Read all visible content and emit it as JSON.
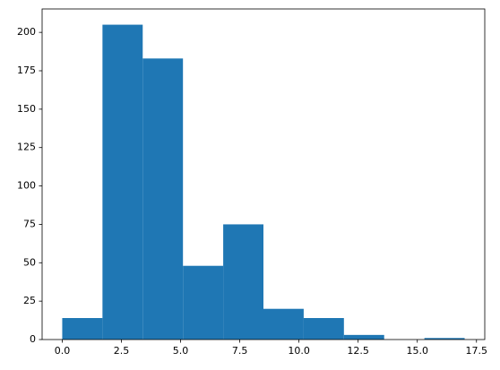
{
  "chart_data": {
    "type": "histogram",
    "color": "#1f77b4",
    "bins": [
      0,
      1.7,
      3.4,
      5.1,
      6.8,
      8.5,
      10.2,
      11.9,
      13.6,
      15.3,
      17
    ],
    "values": [
      14,
      205,
      183,
      48,
      75,
      20,
      14,
      3,
      0,
      1
    ],
    "xlim": [
      -0.85,
      17.85
    ],
    "xticks": [
      {
        "value": 0,
        "label": "0.0"
      },
      {
        "value": 2.5,
        "label": "2.5"
      },
      {
        "value": 5,
        "label": "5.0"
      },
      {
        "value": 7.5,
        "label": "7.5"
      },
      {
        "value": 10,
        "label": "10.0"
      },
      {
        "value": 12.5,
        "label": "12.5"
      },
      {
        "value": 15,
        "label": "15.0"
      },
      {
        "value": 17.5,
        "label": "17.5"
      }
    ],
    "ylim": [
      0,
      215.25
    ],
    "yticks": [
      0,
      25,
      50,
      75,
      100,
      125,
      150,
      175,
      200
    ]
  }
}
